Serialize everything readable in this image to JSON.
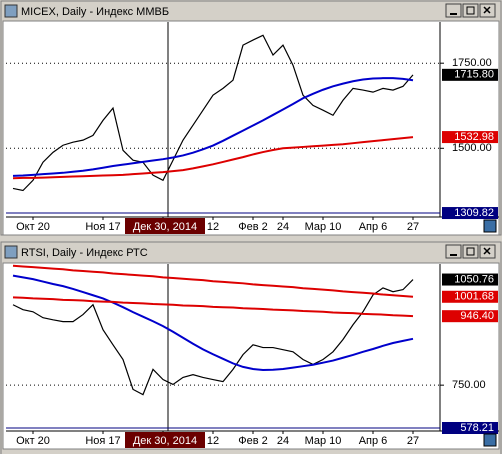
{
  "chart_data": [
    {
      "type": "line",
      "title": "MICEX, Daily - Индекс ММВБ",
      "categories": [
        null,
        null,
        "Окт 20",
        null,
        null,
        null,
        null,
        null,
        null,
        "Ноя 17",
        null,
        null,
        null,
        null,
        null,
        "Дек 30, 2014",
        null,
        null,
        null,
        null,
        "12",
        null,
        null,
        null,
        "Фев 2",
        null,
        null,
        "24",
        null,
        null,
        null,
        "Мар 10",
        null,
        null,
        null,
        null,
        "Апр 6",
        null,
        null,
        null,
        "27"
      ],
      "series": [
        {
          "color": "#000000",
          "values": [
            1382,
            1376,
            1406,
            1459,
            1488,
            1509,
            1518,
            1524,
            1538,
            1582,
            1618,
            1494,
            1465,
            1459,
            1421,
            1406,
            1465,
            1524,
            1568,
            1612,
            1656,
            1676,
            1700,
            1803,
            1818,
            1832,
            1774,
            1803,
            1744,
            1656,
            1626,
            1612,
            1597,
            1641,
            1676,
            1671,
            1665,
            1676,
            1671,
            1682,
            1715.8
          ]
        },
        {
          "color": "#0000cc",
          "values": [
            1419,
            1420,
            1422,
            1424,
            1426,
            1428,
            1431,
            1434,
            1438,
            1443,
            1448,
            1452,
            1456,
            1460,
            1464,
            1468,
            1473,
            1479,
            1487,
            1497,
            1508,
            1522,
            1537,
            1552,
            1567,
            1582,
            1598,
            1614,
            1630,
            1647,
            1660,
            1672,
            1682,
            1690,
            1697,
            1702,
            1705,
            1706,
            1706,
            1704,
            1700
          ]
        },
        {
          "color": "#dd0000",
          "values": [
            1412,
            1413,
            1413,
            1414,
            1415,
            1416,
            1417,
            1418,
            1419,
            1420,
            1421,
            1422,
            1424,
            1426,
            1428,
            1430,
            1433,
            1436,
            1441,
            1447,
            1453,
            1460,
            1467,
            1474,
            1482,
            1489,
            1495,
            1500,
            1502,
            1504,
            1506,
            1508,
            1510,
            1512,
            1515,
            1518,
            1521,
            1524,
            1527,
            1530,
            1532.98
          ]
        }
      ],
      "ylim": [
        1307,
        1871
      ],
      "yticks": [
        {
          "value": 1500,
          "label": "1500.00"
        },
        {
          "value": 1750,
          "label": "1750.00"
        }
      ],
      "grid": true,
      "value_markers": [
        {
          "value": 1715.8,
          "label": "1715.80",
          "color": "#000000"
        },
        {
          "value": 1532.98,
          "label": "1532.98",
          "color": "#dd0000"
        },
        {
          "value": 1309.82,
          "label": "1309.82",
          "color": "#000080"
        }
      ]
    },
    {
      "type": "line",
      "title": "RTSI, Daily - Индекс РТС",
      "categories": [
        null,
        null,
        "Окт 20",
        null,
        null,
        null,
        null,
        null,
        null,
        "Ноя 17",
        null,
        null,
        null,
        null,
        null,
        "Дек 30, 2014",
        null,
        null,
        null,
        null,
        "12",
        null,
        null,
        null,
        "Фев 2",
        null,
        null,
        "24",
        null,
        null,
        null,
        "Мар 10",
        null,
        null,
        null,
        null,
        "Апр 6",
        null,
        null,
        null,
        "27"
      ],
      "series": [
        {
          "color": "#000000",
          "values": [
            979,
            965,
            959,
            942,
            936,
            931,
            931,
            951,
            979,
            908,
            865,
            823,
            738,
            723,
            795,
            766,
            752,
            772,
            780,
            772,
            766,
            760,
            795,
            837,
            865,
            857,
            857,
            851,
            845,
            823,
            809,
            823,
            845,
            880,
            922,
            959,
            1007,
            1027,
            1016,
            1022,
            1050.76
          ]
        },
        {
          "color": "#0000cc",
          "values": [
            1062,
            1057,
            1052,
            1045,
            1038,
            1032,
            1024,
            1015,
            1006,
            997,
            985,
            972,
            958,
            945,
            932,
            918,
            902,
            885,
            868,
            852,
            838,
            825,
            812,
            802,
            796,
            793,
            794,
            796,
            800,
            804,
            808,
            814,
            820,
            828,
            836,
            845,
            853,
            862,
            870,
            876,
            882
          ]
        },
        {
          "color": "#dd0000",
          "values": [
            1090,
            1088,
            1086,
            1084,
            1082,
            1080,
            1077,
            1075,
            1073,
            1071,
            1068,
            1066,
            1064,
            1062,
            1060,
            1057,
            1055,
            1053,
            1051,
            1049,
            1046,
            1044,
            1042,
            1040,
            1037,
            1035,
            1033,
            1031,
            1029,
            1026,
            1024,
            1022,
            1020,
            1017,
            1015,
            1013,
            1011,
            1008,
            1006,
            1004,
            1001.68
          ]
        },
        {
          "color": "#dd0000",
          "values": [
            1000,
            999,
            997,
            996,
            995,
            993,
            992,
            991,
            989,
            988,
            987,
            985,
            984,
            983,
            981,
            980,
            979,
            977,
            976,
            975,
            973,
            972,
            971,
            969,
            968,
            967,
            965,
            964,
            963,
            961,
            960,
            959,
            957,
            956,
            955,
            953,
            952,
            951,
            949,
            948,
            946.4
          ]
        }
      ],
      "ylim": [
        628,
        1095
      ],
      "yticks": [
        {
          "value": 750,
          "label": "750.00"
        }
      ],
      "grid": true,
      "value_markers": [
        {
          "value": 1050.76,
          "label": "1050.76",
          "color": "#000000"
        },
        {
          "value": 1001.68,
          "label": "1001.68",
          "color": "#dd0000"
        },
        {
          "value": 946.4,
          "label": "946.40",
          "color": "#dd0000"
        },
        {
          "value": 578.21,
          "label": "578.21",
          "color": "#000080"
        }
      ]
    }
  ]
}
